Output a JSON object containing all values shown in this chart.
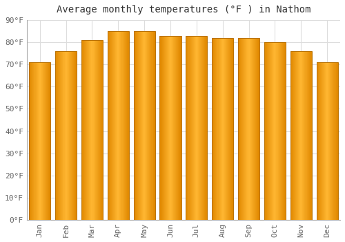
{
  "title": "Average monthly temperatures (°F ) in Nathom",
  "months": [
    "Jan",
    "Feb",
    "Mar",
    "Apr",
    "May",
    "Jun",
    "Jul",
    "Aug",
    "Sep",
    "Oct",
    "Nov",
    "Dec"
  ],
  "values": [
    71,
    76,
    81,
    85,
    85,
    83,
    83,
    82,
    82,
    80,
    76,
    71
  ],
  "bar_color_center": "#FFB732",
  "bar_color_edge": "#E08800",
  "background_color": "#FFFFFF",
  "plot_bg_color": "#FFFFFF",
  "grid_color": "#dddddd",
  "ylim": [
    0,
    90
  ],
  "yticks": [
    0,
    10,
    20,
    30,
    40,
    50,
    60,
    70,
    80,
    90
  ],
  "ytick_labels": [
    "0°F",
    "10°F",
    "20°F",
    "30°F",
    "40°F",
    "50°F",
    "60°F",
    "70°F",
    "80°F",
    "90°F"
  ],
  "title_fontsize": 10,
  "tick_fontsize": 8,
  "bar_width": 0.82
}
